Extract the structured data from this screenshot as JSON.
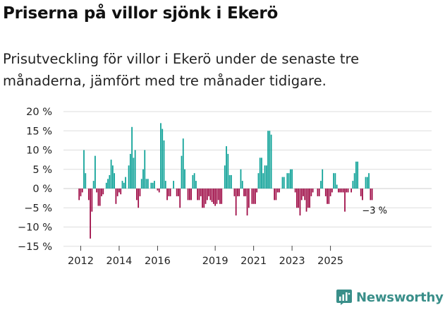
{
  "title": "Priserna på villor sjönk i Ekerö",
  "subtitle": "Prisutveckling för villor i Ekerö under de senaste tre månaderna, jämfört med tre månader tidigare.",
  "brand": {
    "name": "Newsworthy",
    "color": "#3a8f8a"
  },
  "colors": {
    "positive": "#0ca197",
    "negative": "#9e0a45",
    "grid": "#dddddd"
  },
  "chart_data": {
    "type": "bar",
    "title": "Priserna på villor sjönk i Ekerö",
    "xlabel": "",
    "ylabel": "",
    "ylim": [
      -15,
      20
    ],
    "yticks": [
      20,
      15,
      10,
      5,
      0,
      -5,
      -10,
      -15
    ],
    "ytick_labels": [
      "20 %",
      "15 %",
      "10 %",
      "5 %",
      "0 %",
      "−5 %",
      "−10 %",
      "−15 %"
    ],
    "xtick_labels": [
      {
        "label": "2012",
        "year": 2012
      },
      {
        "label": "2014",
        "year": 2014
      },
      {
        "label": "2016",
        "year": 2016
      },
      {
        "label": "2019",
        "year": 2019
      },
      {
        "label": "2021",
        "year": 2021
      },
      {
        "label": "2023",
        "year": 2023
      },
      {
        "label": "2025",
        "year": 2025
      }
    ],
    "start": "2011-12",
    "frequency": "monthly",
    "values": [
      -3,
      -2,
      -1,
      10,
      4,
      0,
      -3,
      -13,
      -6,
      2,
      8.5,
      -1,
      -4.5,
      -4.5,
      -2,
      -1.5,
      0,
      1.5,
      2.5,
      3.5,
      7.5,
      6,
      4,
      -4,
      -2,
      -1,
      -1.5,
      2,
      1.5,
      3,
      0,
      6,
      9,
      16,
      8,
      10,
      -3,
      -5,
      -2,
      2.5,
      5,
      10,
      2.5,
      2.5,
      0,
      1.5,
      1.5,
      2,
      0,
      -0.5,
      -1,
      17,
      15.5,
      12.5,
      2,
      -3,
      -2,
      -2,
      0,
      2,
      0,
      -2,
      -2,
      -5,
      8.5,
      13,
      5,
      0,
      -3,
      -3,
      -3,
      3.5,
      4,
      2,
      -3,
      -3,
      -2,
      -5,
      -5,
      -4,
      -3,
      -2,
      -3,
      -3.5,
      -4,
      -4.5,
      -4,
      -3,
      -4,
      -4,
      0,
      6,
      11,
      9,
      3.5,
      3.5,
      0,
      -2,
      -7,
      -2,
      -2,
      5,
      2,
      -2,
      -2,
      -7,
      -5,
      0,
      -4,
      -4,
      -4,
      -1,
      4,
      8,
      8,
      4,
      6,
      6,
      15,
      15,
      14,
      0,
      -3,
      -3,
      -1,
      -1,
      0,
      3,
      3,
      0,
      4,
      4,
      5,
      5,
      0,
      -1,
      -5,
      -5,
      -7,
      -3,
      -2,
      -3,
      -6,
      -5,
      -5,
      -2,
      -1,
      0,
      0,
      -2,
      -2,
      2,
      5,
      0,
      -2,
      -4,
      -4,
      -2,
      -1,
      4,
      4,
      1,
      -1,
      -1,
      -1,
      -1,
      -6,
      -1,
      -1,
      0,
      -1,
      2,
      4,
      7,
      7,
      0,
      -2,
      -3,
      0,
      3,
      3,
      4,
      -3,
      -3,
      0,
      0
    ],
    "annotation": {
      "label": "−3 %",
      "value": -3
    }
  }
}
